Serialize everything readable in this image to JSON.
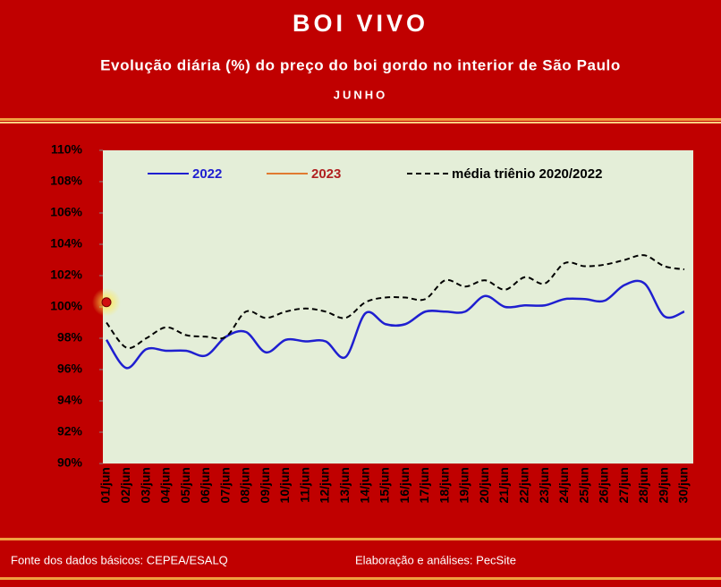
{
  "chart_data": {
    "type": "line",
    "title": "BOI VIVO",
    "subtitle": "Evolução diária (%) do preço do boi gordo no interior de São Paulo",
    "period": "JUNHO",
    "source": "Fonte dos dados básicos: CEPEA/ESALQ",
    "credit": "Elaboração e análises: PecSite",
    "categories": [
      "01/jun",
      "02/jun",
      "03/jun",
      "04/jun",
      "05/jun",
      "06/jun",
      "07/jun",
      "08/jun",
      "09/jun",
      "10/jun",
      "11/jun",
      "12/jun",
      "13/jun",
      "14/jun",
      "15/jun",
      "16/jun",
      "17/jun",
      "18/jun",
      "19/jun",
      "20/jun",
      "21/jun",
      "22/jun",
      "23/jun",
      "24/jun",
      "25/jun",
      "26/jun",
      "27/jun",
      "28/jun",
      "29/jun",
      "30/jun"
    ],
    "series": [
      {
        "name": "2022",
        "color": "#1f1fd0",
        "values": [
          97.9,
          96.1,
          97.3,
          97.2,
          97.2,
          96.9,
          98.1,
          98.4,
          97.1,
          97.9,
          97.8,
          97.8,
          96.8,
          99.6,
          98.9,
          98.9,
          99.7,
          99.7,
          99.7,
          100.7,
          100.0,
          100.1,
          100.1,
          100.5,
          100.5,
          100.4,
          101.4,
          101.5,
          99.4,
          99.7
        ]
      },
      {
        "name": "2023",
        "color": "#e07a30",
        "values": [
          100.3,
          null,
          null,
          null,
          null,
          null,
          null,
          null,
          null,
          null,
          null,
          null,
          null,
          null,
          null,
          null,
          null,
          null,
          null,
          null,
          null,
          null,
          null,
          null,
          null,
          null,
          null,
          null,
          null,
          null
        ]
      },
      {
        "name": "média triênio 2020/2022",
        "color": "#000000",
        "dashed": true,
        "values": [
          99.0,
          97.4,
          98.0,
          98.7,
          98.2,
          98.1,
          98.1,
          99.7,
          99.3,
          99.7,
          99.9,
          99.7,
          99.3,
          100.3,
          100.6,
          100.6,
          100.5,
          101.7,
          101.3,
          101.7,
          101.1,
          101.9,
          101.5,
          102.8,
          102.6,
          102.7,
          103.0,
          103.3,
          102.6,
          102.4
        ]
      }
    ],
    "ylim": [
      90,
      110
    ],
    "yticks": [
      {
        "value": 90,
        "label": "90%"
      },
      {
        "value": 92,
        "label": "92%"
      },
      {
        "value": 94,
        "label": "94%"
      },
      {
        "value": 96,
        "label": "96%"
      },
      {
        "value": 98,
        "label": "98%"
      },
      {
        "value": 100,
        "label": "100%"
      },
      {
        "value": 102,
        "label": "102%"
      },
      {
        "value": 104,
        "label": "104%"
      },
      {
        "value": 106,
        "label": "106%"
      },
      {
        "value": 108,
        "label": "108%"
      },
      {
        "value": 110,
        "label": "110%"
      }
    ],
    "grid": false
  }
}
